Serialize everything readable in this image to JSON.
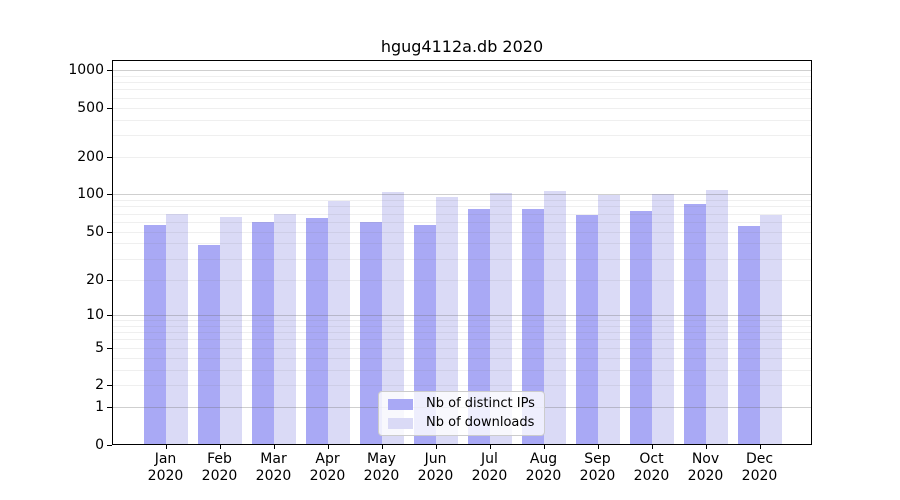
{
  "title": "hgug4112a.db 2020",
  "colors": {
    "bar_distinct_ips": "#a9a9f5",
    "bar_downloads": "#dadaf6",
    "grid_major": "#cdcdcd",
    "grid_minor": "#efefef",
    "axis": "#000000",
    "legend_border": "#cccccc"
  },
  "chart_data": {
    "type": "bar",
    "title": "hgug4112a.db 2020",
    "categories": [
      "Jan 2020",
      "Feb 2020",
      "Mar 2020",
      "Apr 2020",
      "May 2020",
      "Jun 2020",
      "Jul 2020",
      "Aug 2020",
      "Sep 2020",
      "Oct 2020",
      "Nov 2020",
      "Dec 2020"
    ],
    "series": [
      {
        "name": "Nb of distinct IPs",
        "color": "#a9a9f5",
        "values": [
          57,
          39,
          60,
          65,
          60,
          57,
          76,
          77,
          68,
          73,
          83,
          56
        ]
      },
      {
        "name": "Nb of downloads",
        "color": "#dadaf6",
        "values": [
          70,
          66,
          70,
          89,
          105,
          96,
          103,
          106,
          99,
          101,
          108,
          68
        ]
      }
    ],
    "yscale": "log10(1+v)",
    "yticks": [
      0,
      1,
      2,
      5,
      10,
      20,
      50,
      100,
      200,
      500,
      1000
    ],
    "ylim": [
      0,
      1200
    ],
    "xlabel": "",
    "ylabel": "",
    "grid": "horizontal major+minor, drawn over bars",
    "legend_position": "lower center inside plot"
  }
}
